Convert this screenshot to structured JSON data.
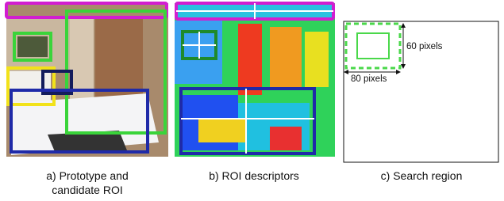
{
  "panels": [
    {
      "caption_lines": [
        "a) Prototype and",
        "candidate ROI"
      ]
    },
    {
      "caption_lines": [
        "b) ROI descriptors"
      ]
    },
    {
      "caption_lines": [
        "c) Search region"
      ],
      "labels": {
        "height": "60 pixels",
        "width": "80 pixels"
      }
    }
  ]
}
